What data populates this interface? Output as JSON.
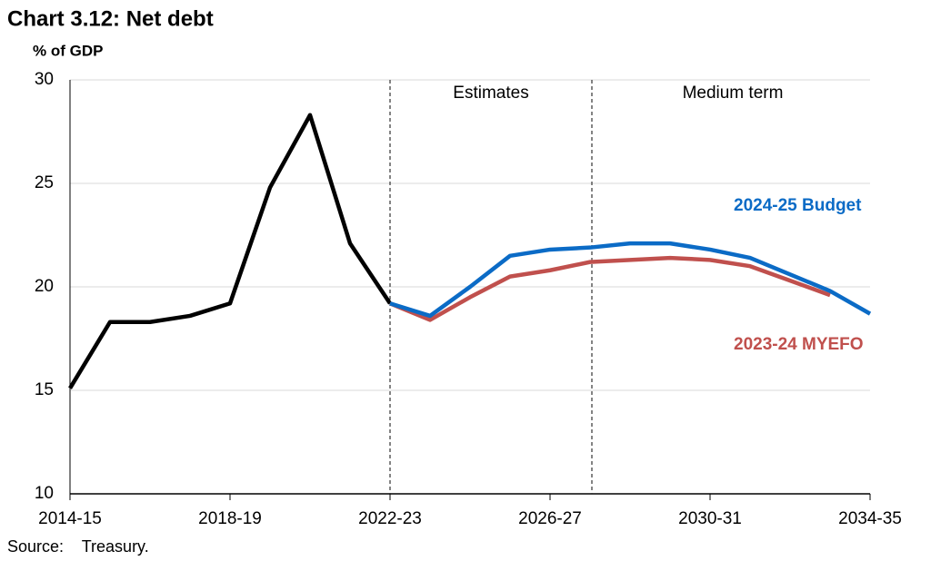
{
  "chart_data": {
    "type": "line",
    "title": "Chart 3.12: Net debt",
    "y_label": "% of GDP",
    "source": "Source:    Treasury.",
    "annotations": [
      "Estimates",
      "Medium term"
    ],
    "categories": [
      "2014-15",
      null,
      null,
      null,
      "2018-19",
      null,
      null,
      null,
      "2022-23",
      null,
      null,
      null,
      "2026-27",
      null,
      null,
      null,
      "2030-31",
      null,
      null,
      null,
      "2034-35"
    ],
    "ylim": [
      10,
      30
    ],
    "yticks": [
      10,
      15,
      20,
      25,
      30
    ],
    "grid": true,
    "series": [
      {
        "color": "#000000",
        "values": [
          15.1,
          18.3,
          18.3,
          18.6,
          19.2,
          24.8,
          28.3,
          22.1,
          19.2,
          null,
          null,
          null,
          null,
          null,
          null,
          null,
          null,
          null,
          null,
          null,
          null
        ]
      },
      {
        "name": "2023-24 MYEFO",
        "color": "#c0504d",
        "values": [
          null,
          null,
          null,
          null,
          null,
          null,
          null,
          null,
          19.2,
          18.4,
          19.5,
          20.5,
          20.8,
          21.2,
          21.3,
          21.4,
          21.3,
          21.0,
          20.3,
          19.6,
          null
        ]
      },
      {
        "name": "2024-25 Budget",
        "color": "#0b6bc6",
        "values": [
          null,
          null,
          null,
          null,
          null,
          null,
          null,
          null,
          19.2,
          18.6,
          20.0,
          21.5,
          21.8,
          21.9,
          22.1,
          22.1,
          21.8,
          21.4,
          20.6,
          19.8,
          18.7
        ]
      }
    ]
  }
}
